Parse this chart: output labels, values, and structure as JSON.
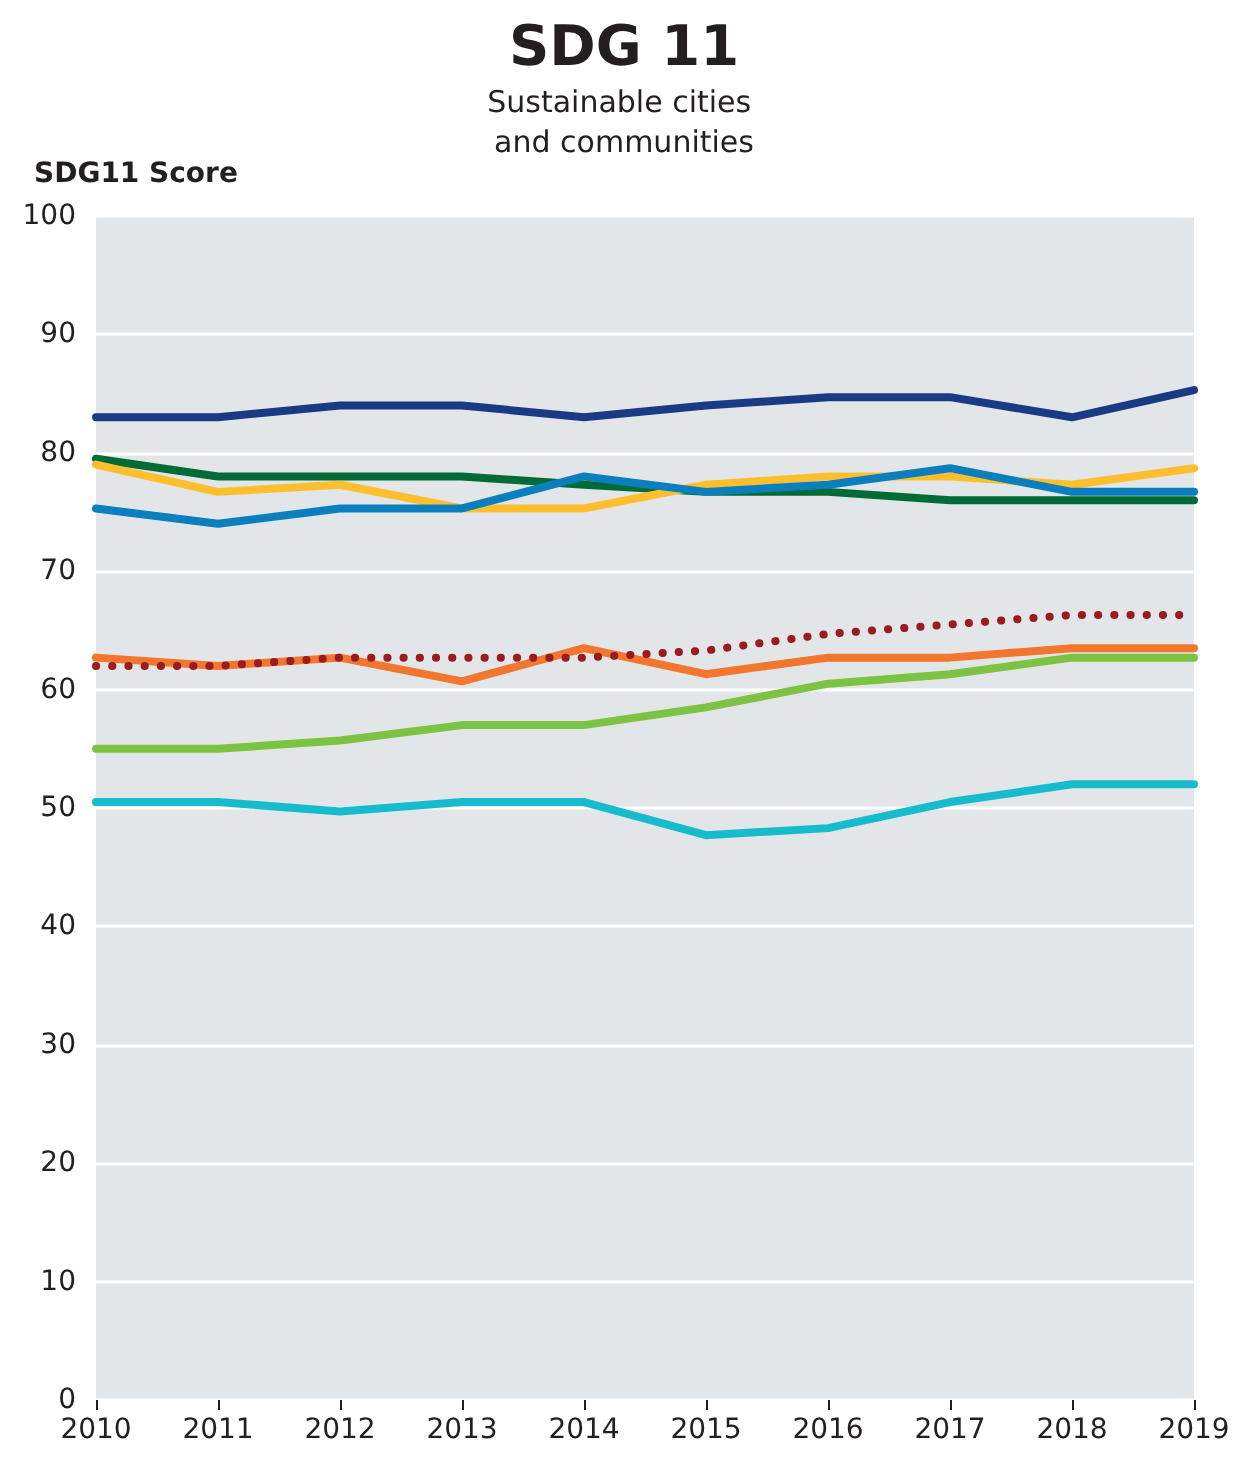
{
  "chart_data": {
    "type": "line",
    "title": "SDG 11",
    "subtitle": "Sustainable cities and communities",
    "ylabel": "SDG11 Score",
    "x": [
      2010,
      2011,
      2012,
      2013,
      2014,
      2015,
      2016,
      2017,
      2018,
      2019
    ],
    "xlim": [
      2010,
      2019
    ],
    "xticks": [
      2010,
      2011,
      2012,
      2013,
      2014,
      2015,
      2016,
      2017,
      2018,
      2019
    ],
    "ylim": [
      0,
      100
    ],
    "yticks": [
      0,
      10,
      20,
      30,
      40,
      50,
      60,
      70,
      80,
      90,
      100
    ],
    "grid": "y",
    "marker": "none",
    "series": [
      {
        "color": "#1a3a85",
        "values": [
          83,
          83,
          84,
          84,
          83,
          84,
          84.7,
          84.7,
          83,
          85.3
        ]
      },
      {
        "color": "#006b35",
        "values": [
          79.5,
          78,
          78,
          78,
          77.3,
          76.7,
          76.7,
          76,
          76,
          76
        ]
      },
      {
        "color": "#fdbf2d",
        "values": [
          79,
          76.7,
          77.3,
          75.3,
          75.3,
          77.3,
          78,
          78,
          77.3,
          78.7
        ]
      },
      {
        "color": "#0b7fbd",
        "values": [
          75.3,
          74,
          75.3,
          75.3,
          78,
          76.7,
          77.3,
          78.7,
          76.7,
          76.7
        ]
      },
      {
        "color": "#f3762f",
        "values": [
          62.7,
          62,
          62.7,
          60.7,
          63.5,
          61.3,
          62.7,
          62.7,
          63.5,
          63.5
        ]
      },
      {
        "color": "#9b1c1f",
        "line_style": "dotted",
        "values": [
          62,
          62,
          62.7,
          62.7,
          62.7,
          63.3,
          64.7,
          65.5,
          66.3,
          66.3
        ]
      },
      {
        "color": "#7dc242",
        "values": [
          55,
          55,
          55.7,
          57,
          57,
          58.5,
          60.5,
          61.3,
          62.7,
          62.7
        ]
      },
      {
        "color": "#17bccc",
        "values": [
          50.5,
          50.5,
          49.7,
          50.5,
          50.5,
          47.7,
          48.3,
          50.5,
          52,
          52
        ]
      }
    ]
  }
}
